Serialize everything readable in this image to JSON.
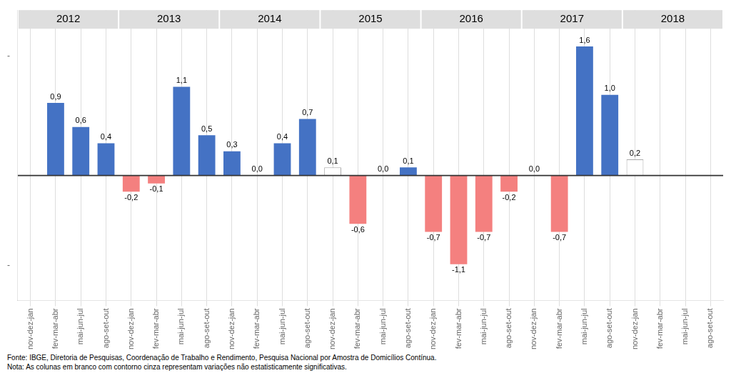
{
  "chart_data": {
    "type": "bar",
    "categories": [
      "nov-dez-jan",
      "fev-mar-abr",
      "mai-jun-jul",
      "ago-set-out",
      "nov-dez-jan",
      "fev-mar-abr",
      "mai-jun-jul",
      "ago-set-out",
      "nov-dez-jan",
      "fev-mar-abr",
      "mai-jun-jul",
      "ago-set-out",
      "nov-dez-jan",
      "fev-mar-abr",
      "mai-jun-jul",
      "ago-set-out",
      "nov-dez-jan",
      "fev-mar-abr",
      "mai-jun-jul",
      "ago-set-out",
      "nov-dez-jan",
      "fev-mar-abr",
      "mai-jun-jul",
      "ago-set-out",
      "nov-dez-jan",
      "fev-mar-abr",
      "mai-jun-jul",
      "ago-set-out"
    ],
    "groups": [
      {
        "name": "2012",
        "count": 4
      },
      {
        "name": "2013",
        "count": 4
      },
      {
        "name": "2014",
        "count": 4
      },
      {
        "name": "2015",
        "count": 4
      },
      {
        "name": "2016",
        "count": 4
      },
      {
        "name": "2017",
        "count": 4
      },
      {
        "name": "2018",
        "count": 4
      }
    ],
    "values": [
      null,
      0.9,
      0.6,
      0.4,
      -0.2,
      -0.1,
      1.1,
      0.5,
      0.3,
      0.0,
      0.4,
      0.7,
      0.1,
      -0.6,
      0.0,
      0.1,
      -0.7,
      -1.1,
      -0.7,
      -0.2,
      0.0,
      -0.7,
      1.6,
      1.0,
      0.2,
      null,
      null,
      null
    ],
    "value_labels": [
      null,
      "0,9",
      "0,6",
      "0,4",
      "-0,2",
      "-0,1",
      "1,1",
      "0,5",
      "0,3",
      "0,0",
      "0,4",
      "0,7",
      "0,1",
      "-0,6",
      "0,0",
      "0,1",
      "-0,7",
      "-1,1",
      "-0,7",
      "-0,2",
      "0,0",
      "-0,7",
      "1,6",
      "1,0",
      "0,2",
      null,
      null,
      null
    ],
    "insignificant": [
      false,
      false,
      false,
      false,
      false,
      false,
      false,
      false,
      false,
      true,
      false,
      false,
      true,
      false,
      true,
      false,
      false,
      false,
      false,
      false,
      true,
      false,
      false,
      false,
      true,
      false,
      false,
      false
    ],
    "colors": [
      null,
      "#4472C4",
      "#4472C4",
      "#4472C4",
      "#F4807F",
      "#F4807F",
      "#4472C4",
      "#4472C4",
      "#4472C4",
      "#FFFFFF",
      "#4472C4",
      "#4472C4",
      "#FFFFFF",
      "#F4807F",
      "#FFFFFF",
      "#4472C4",
      "#F4807F",
      "#F4807F",
      "#F4807F",
      "#F4807F",
      "#FFFFFF",
      "#F4807F",
      "#4472C4",
      "#4472C4",
      "#FFFFFF",
      null,
      null,
      null
    ],
    "data_labels": true,
    "ylim": [
      -1.55,
      2.05
    ],
    "yticks": [
      {
        "value": -1.116,
        "label": "-"
      },
      {
        "value": 1.476,
        "label": "-"
      }
    ],
    "grid": true,
    "annotations": [
      "Fonte: IBGE, Diretoria de Pesquisas, Coordenação de Trabalho e Rendimento, Pesquisa Nacional por Amostra de Domicílios Contínua.",
      "Nota: As colunas em branco com contorno cinza representam variações não estatisticamente significativas."
    ]
  }
}
